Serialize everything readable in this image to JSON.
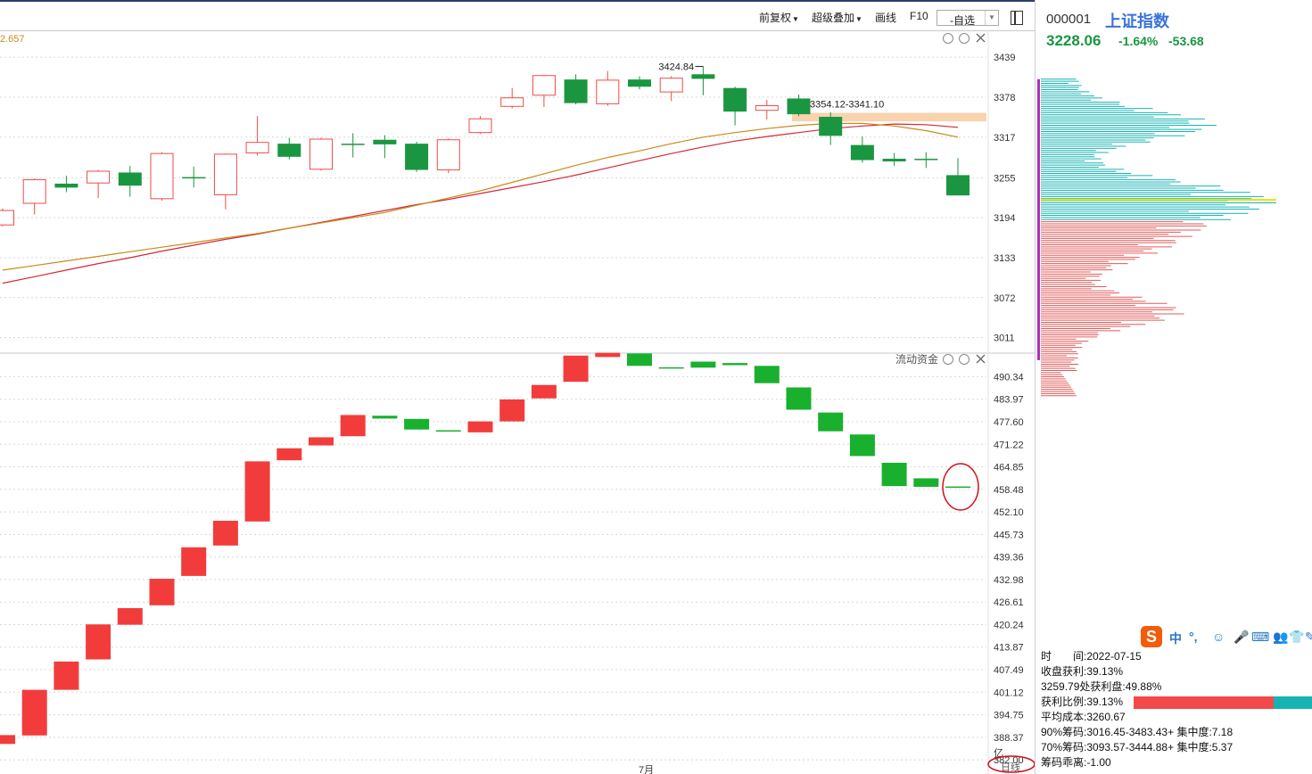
{
  "toolbar": {
    "restore_right": "前复权",
    "overlay": "超级叠加",
    "draw_line": "画线",
    "f10": "F10",
    "watchlist": "-自选"
  },
  "chart_data": {
    "type": "candlestick",
    "title": "",
    "corner_value_label": "2.657",
    "price_axis_ticks": [
      3439,
      3378,
      3317,
      3255,
      3194,
      3133,
      3072,
      3011
    ],
    "price_ylim": [
      2990,
      3476
    ],
    "candles": [
      {
        "open": 3183,
        "close": 3205,
        "high": 3208,
        "low": 3181
      },
      {
        "open": 3216,
        "close": 3252,
        "high": 3254,
        "low": 3199
      },
      {
        "open": 3246,
        "close": 3240,
        "high": 3258,
        "low": 3233
      },
      {
        "open": 3247,
        "close": 3265,
        "high": 3267,
        "low": 3224
      },
      {
        "open": 3263,
        "close": 3243,
        "high": 3273,
        "low": 3226
      },
      {
        "open": 3223,
        "close": 3292,
        "high": 3294,
        "low": 3220
      },
      {
        "open": 3256,
        "close": 3254,
        "high": 3272,
        "low": 3240
      },
      {
        "open": 3229,
        "close": 3291,
        "high": 3292,
        "low": 3207
      },
      {
        "open": 3293,
        "close": 3309,
        "high": 3349,
        "low": 3289
      },
      {
        "open": 3307,
        "close": 3287,
        "high": 3316,
        "low": 3283
      },
      {
        "open": 3268,
        "close": 3314,
        "high": 3316,
        "low": 3266
      },
      {
        "open": 3307,
        "close": 3305,
        "high": 3323,
        "low": 3286
      },
      {
        "open": 3313,
        "close": 3306,
        "high": 3320,
        "low": 3285
      },
      {
        "open": 3307,
        "close": 3267,
        "high": 3310,
        "low": 3264
      },
      {
        "open": 3267,
        "close": 3313,
        "high": 3315,
        "low": 3262
      },
      {
        "open": 3324,
        "close": 3345,
        "high": 3349,
        "low": 3322
      },
      {
        "open": 3364,
        "close": 3377,
        "high": 3392,
        "low": 3361
      },
      {
        "open": 3381,
        "close": 3411,
        "high": 3412,
        "low": 3363
      },
      {
        "open": 3405,
        "close": 3369,
        "high": 3413,
        "low": 3367
      },
      {
        "open": 3368,
        "close": 3404,
        "high": 3418,
        "low": 3365
      },
      {
        "open": 3405,
        "close": 3394,
        "high": 3410,
        "low": 3390
      },
      {
        "open": 3386,
        "close": 3407,
        "high": 3410,
        "low": 3372
      },
      {
        "open": 3413,
        "close": 3406,
        "high": 3425,
        "low": 3381
      },
      {
        "open": 3392,
        "close": 3356,
        "high": 3394,
        "low": 3335
      },
      {
        "open": 3358,
        "close": 3365,
        "high": 3374,
        "low": 3344
      },
      {
        "open": 3376,
        "close": 3352,
        "high": 3382,
        "low": 3349
      },
      {
        "open": 3348,
        "close": 3319,
        "high": 3355,
        "low": 3305
      },
      {
        "open": 3305,
        "close": 3282,
        "high": 3318,
        "low": 3278
      },
      {
        "open": 3284,
        "close": 3280,
        "high": 3293,
        "low": 3273
      },
      {
        "open": 3284,
        "close": 3282,
        "high": 3294,
        "low": 3270
      },
      {
        "open": 3259,
        "close": 3228,
        "high": 3285,
        "low": 3228
      }
    ],
    "ma_yellow": [
      3114,
      3121,
      3128,
      3135,
      3142,
      3149,
      3156,
      3163,
      3170,
      3178,
      3186,
      3194,
      3202,
      3213,
      3224,
      3235,
      3248,
      3261,
      3274,
      3286,
      3296,
      3307,
      3317,
      3324,
      3330,
      3335,
      3338,
      3338,
      3334,
      3327,
      3317
    ],
    "ma_red": [
      3094,
      3104,
      3114,
      3124,
      3133,
      3143,
      3152,
      3161,
      3169,
      3178,
      3187,
      3196,
      3205,
      3214,
      3222,
      3231,
      3240,
      3249,
      3259,
      3270,
      3281,
      3292,
      3302,
      3311,
      3318,
      3324,
      3330,
      3334,
      3337,
      3336,
      3332
    ],
    "annotations": {
      "high_label": "3424.84",
      "zone_label": "3354.12-3341.10",
      "zone_high": 3354.12,
      "zone_low": 3341.1
    },
    "flow_panel_title": "流动资金",
    "flow_unit": "亿",
    "flow_axis_ticks": [
      490.34,
      483.97,
      477.6,
      471.22,
      464.85,
      458.48,
      452.1,
      445.73,
      439.36,
      432.98,
      426.61,
      420.24,
      413.87,
      407.49,
      401.12,
      394.75,
      388.37,
      382.0
    ],
    "flow_ylim": [
      378,
      496.5
    ],
    "flow_bars": [
      {
        "from": 386.5,
        "to": 389.0
      },
      {
        "from": 388.9,
        "to": 401.8
      },
      {
        "from": 401.8,
        "to": 409.8
      },
      {
        "from": 410.4,
        "to": 420.3
      },
      {
        "from": 420.2,
        "to": 424.9
      },
      {
        "from": 425.7,
        "to": 433.2
      },
      {
        "from": 434.0,
        "to": 442.1
      },
      {
        "from": 442.6,
        "to": 449.6
      },
      {
        "from": 449.4,
        "to": 466.4
      },
      {
        "from": 466.7,
        "to": 470.1
      },
      {
        "from": 470.9,
        "to": 473.2
      },
      {
        "from": 473.5,
        "to": 479.5
      },
      {
        "from": 479.3,
        "to": 478.5
      },
      {
        "from": 478.4,
        "to": 475.4
      },
      {
        "from": 475.2,
        "to": 475.1
      },
      {
        "from": 474.6,
        "to": 477.7
      },
      {
        "from": 477.7,
        "to": 483.9
      },
      {
        "from": 484.2,
        "to": 488.0
      },
      {
        "from": 488.9,
        "to": 496.3
      },
      {
        "from": 495.9,
        "to": 497.1
      },
      {
        "from": 496.9,
        "to": 493.4
      },
      {
        "from": 493.0,
        "to": 492.8
      },
      {
        "from": 494.6,
        "to": 492.9
      },
      {
        "from": 494.2,
        "to": 493.6
      },
      {
        "from": 493.4,
        "to": 488.5
      },
      {
        "from": 487.3,
        "to": 481.0
      },
      {
        "from": 480.2,
        "to": 474.9
      },
      {
        "from": 474.0,
        "to": 467.9
      },
      {
        "from": 466.0,
        "to": 459.4
      },
      {
        "from": 461.6,
        "to": 459.2
      },
      {
        "from": 459.3,
        "to": 459.2
      }
    ],
    "x_tick_label": "7月",
    "period_label": "日线"
  },
  "sidebar": {
    "code": "000001",
    "name": "上证指数",
    "price": "3228.06",
    "pct": "-1.64%",
    "change": "-53.68",
    "time_label": "时　　间:2022-07-15",
    "close_profit": "收盘获利:39.13%",
    "profit_at": "3259.79处获利盘:49.88%",
    "profit_ratio_label": "获利比例:39.13%",
    "profit_ratio": 0.3913,
    "avg_cost": "平均成本:3260.67",
    "chips90": "90%筹码:3016.45-3483.43+ 集中度:7.18",
    "chips70": "70%筹码:3093.57-3444.88+ 集中度:5.37",
    "chip_deviation": "筹码乖离:-1.00",
    "ime_lang": "中",
    "ime_punct": "°,",
    "red_color": "#f24a4a",
    "green_color": "#1a9641",
    "cyan_color": "#17b3b3"
  }
}
